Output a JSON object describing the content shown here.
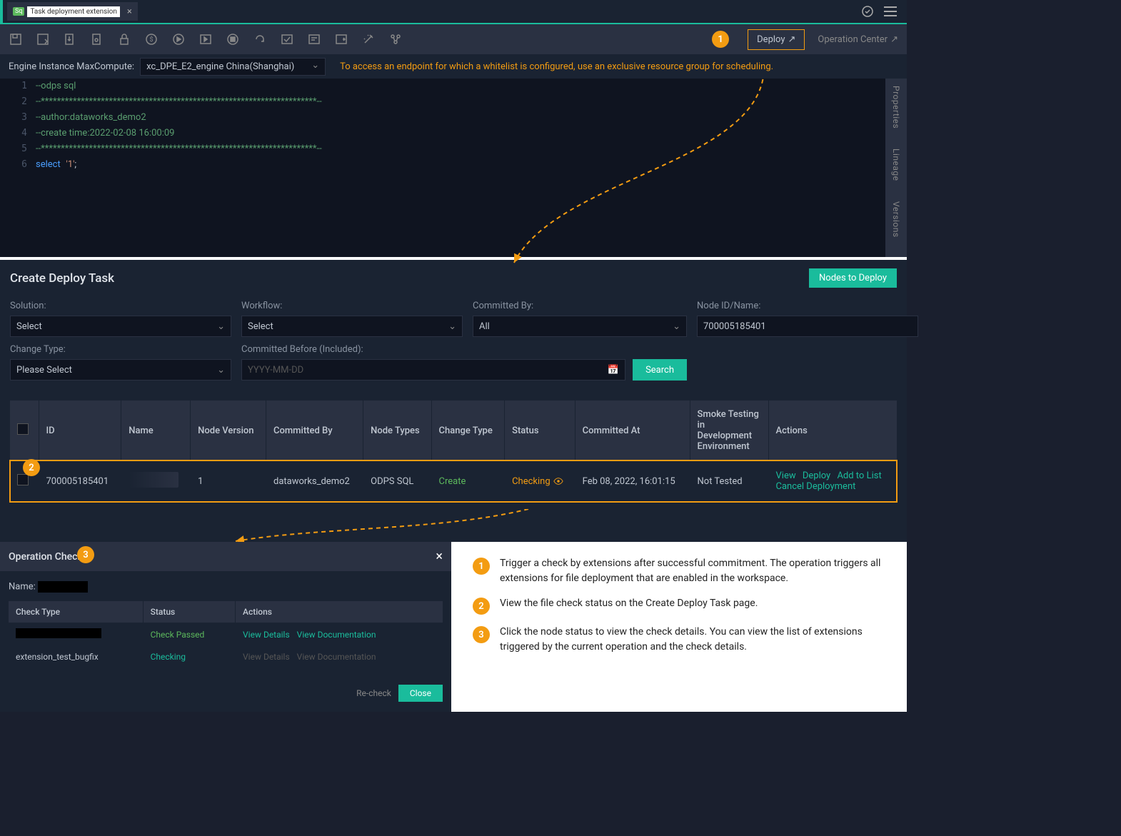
{
  "tab": {
    "badge": "Sq",
    "label": "Task deployment extension"
  },
  "toolbar": {
    "deploy_label": "Deploy",
    "op_center_label": "Operation Center"
  },
  "engine": {
    "label": "Engine Instance MaxCompute:",
    "value": "xc_DPE_E2_engine China(Shanghai)",
    "warning": "To access an endpoint for which a whitelist is configured, use an exclusive resource group for scheduling."
  },
  "code": {
    "lines": [
      {
        "n": 1,
        "type": "comment",
        "text": "--odps sql"
      },
      {
        "n": 2,
        "type": "comment",
        "text": "--*********************************************************************--"
      },
      {
        "n": 3,
        "type": "comment",
        "text": "--author:dataworks_demo2"
      },
      {
        "n": 4,
        "type": "comment",
        "text": "--create time:2022-02-08 16:00:09"
      },
      {
        "n": 5,
        "type": "comment",
        "text": "--*********************************************************************--"
      },
      {
        "n": 6,
        "type": "select",
        "kw": "select",
        "str": "'1'",
        "punc": ";"
      }
    ]
  },
  "side_tabs": [
    "Properties",
    "Lineage",
    "Versions"
  ],
  "deploy_task": {
    "title": "Create Deploy Task",
    "nodes_btn": "Nodes to Deploy",
    "filters": {
      "solution": {
        "label": "Solution:",
        "value": "Select"
      },
      "workflow": {
        "label": "Workflow:",
        "value": "Select"
      },
      "committed_by": {
        "label": "Committed By:",
        "value": "All"
      },
      "node_id": {
        "label": "Node ID/Name:",
        "value": "700005185401"
      },
      "change_type": {
        "label": "Change Type:",
        "value": "Please Select"
      },
      "committed_before": {
        "label": "Committed Before (Included):",
        "placeholder": "YYYY-MM-DD"
      },
      "search": "Search"
    },
    "columns": [
      "",
      "ID",
      "Name",
      "Node Version",
      "Committed By",
      "Node Types",
      "Change Type",
      "Status",
      "Committed At",
      "Smoke Testing in Development Environment",
      "Actions"
    ],
    "row": {
      "id": "700005185401",
      "node_version": "1",
      "committed_by": "dataworks_demo2",
      "node_types": "ODPS SQL",
      "change_type": "Create",
      "status": "Checking",
      "committed_at": "Feb 08, 2022, 16:01:15",
      "smoke": "Not Tested",
      "actions": [
        "View",
        "Deploy",
        "Add to List",
        "Cancel Deployment"
      ]
    }
  },
  "op_check": {
    "title": "Operation Check",
    "name_label": "Name:",
    "columns": [
      "Check Type",
      "Status",
      "Actions"
    ],
    "rows": [
      {
        "type_hidden": true,
        "status": "Check Passed",
        "status_class": "status-passed",
        "links": [
          "View Details",
          "View Documentation"
        ],
        "disabled": false
      },
      {
        "type": "extension_test_bugfix",
        "status": "Checking",
        "status_class": "status-checking2",
        "links": [
          "View Details",
          "View Documentation"
        ],
        "disabled": true
      }
    ],
    "recheck": "Re-check",
    "close": "Close"
  },
  "legend": [
    "Trigger a check by extensions after successful commitment. The operation triggers all extensions for file deployment that are enabled in the workspace.",
    "View the file check status on the Create Deploy Task page.",
    "Click the node status to view the check details. You can view the list of extensions triggered by the current operation and the check details."
  ],
  "callouts": {
    "1": "1",
    "2": "2",
    "3": "3"
  }
}
